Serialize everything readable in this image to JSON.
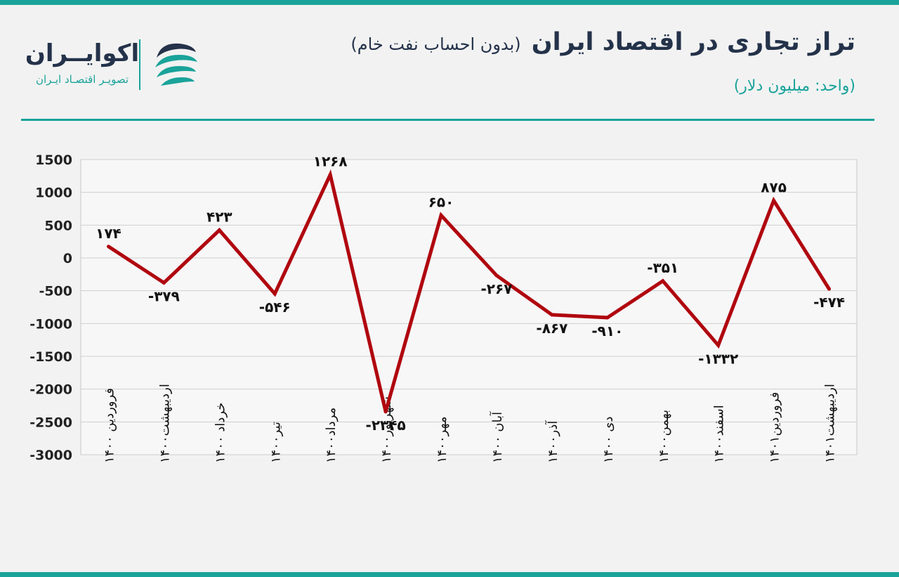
{
  "header": {
    "title": "تراز تجاری در اقتصاد ایران",
    "subtitle": "(بدون احساب نفت خام)",
    "unit": "(واحد: میلیون دلار)"
  },
  "logo": {
    "name": "اکوایــران",
    "tagline": "تصویـر اقتصـاد ایـران",
    "mark_icon": "swirl-logo-icon"
  },
  "colors": {
    "accent": "#1aa39a",
    "title": "#24324a",
    "line": "#b0060f"
  },
  "chart_data": {
    "type": "line",
    "title": "",
    "xlabel": "",
    "ylabel": "",
    "ylim": [
      -3000,
      1500
    ],
    "yticks": [
      {
        "value": 1500,
        "label": "1500"
      },
      {
        "value": 1000,
        "label": "1000"
      },
      {
        "value": 500,
        "label": "500"
      },
      {
        "value": 0,
        "label": "0"
      },
      {
        "value": -500,
        "label": "-500"
      },
      {
        "value": -1000,
        "label": "-1000"
      },
      {
        "value": -1500,
        "label": "-1500"
      },
      {
        "value": -2000,
        "label": "-2000"
      },
      {
        "value": -2500,
        "label": "-2500"
      },
      {
        "value": -3000,
        "label": "-3000"
      }
    ],
    "grid": true,
    "legend": "none",
    "categories": [
      "فروردین ۱۴۰۰",
      "اردیبهشت۱۴۰۰",
      "خرداد ۱۴۰۰",
      "تیر۱۴۰۰",
      "مرداد۱۴۰۰",
      "شهریور۱۴۰۰",
      "مهر۱۴۰۰",
      "آبان ۱۴۰۰",
      "آذر۱۴۰۰",
      "دی ۱۴۰۰",
      "بهمن۱۴۰۰",
      "اسفند۱۴۰۰",
      "فروردین۱۴۰۱",
      "اردیبهشت۱۴۰۱"
    ],
    "series": [
      {
        "values": [
          174,
          -379,
          423,
          -546,
          1268,
          -2345,
          650,
          -267,
          -867,
          -910,
          -351,
          -1332,
          875,
          -474
        ],
        "labels": [
          "۱۷۴",
          "-۳۷۹",
          "۴۲۳",
          "-۵۴۶",
          "۱۲۶۸",
          "-۲۳۴۵",
          "۶۵۰",
          "-۲۶۷",
          "-۸۶۷",
          "-۹۱۰",
          "-۳۵۱",
          "-۱۳۳۲",
          "۸۷۵",
          "-۴۷۴"
        ]
      }
    ]
  }
}
